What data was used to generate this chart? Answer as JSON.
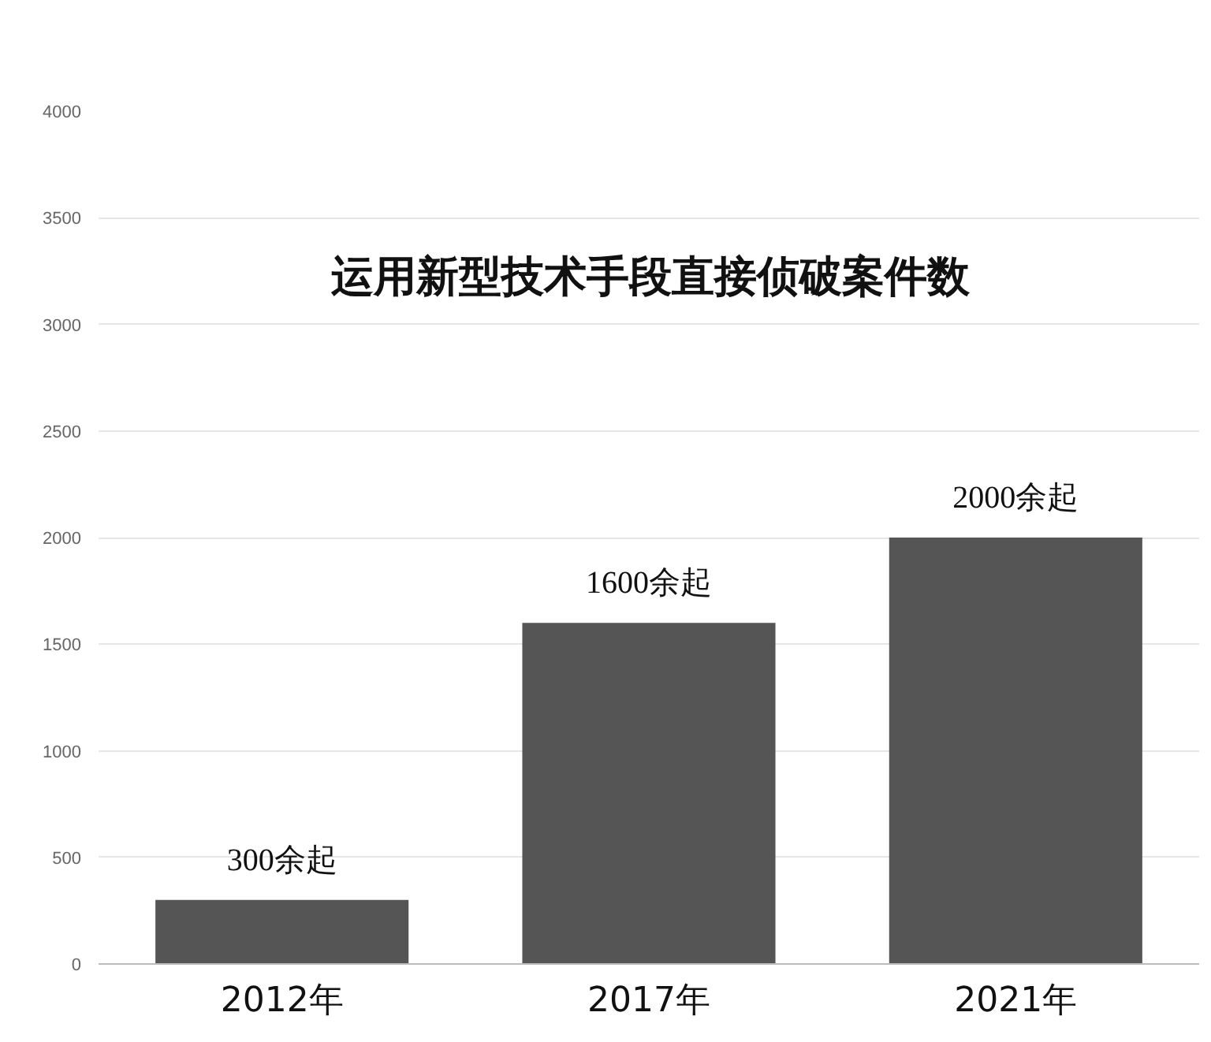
{
  "chart_data": {
    "type": "bar",
    "title": "运用新型技术手段直接侦破案件数",
    "categories": [
      "2012年",
      "2017年",
      "2021年"
    ],
    "values": [
      300,
      1600,
      2000
    ],
    "value_labels": [
      "300余起",
      "1600余起",
      "2000余起"
    ],
    "color": "#555555",
    "ylim": [
      0,
      4000
    ],
    "yticks": [
      0,
      500,
      1000,
      1500,
      2000,
      2500,
      3000,
      3500,
      4000
    ],
    "grid": "y"
  }
}
